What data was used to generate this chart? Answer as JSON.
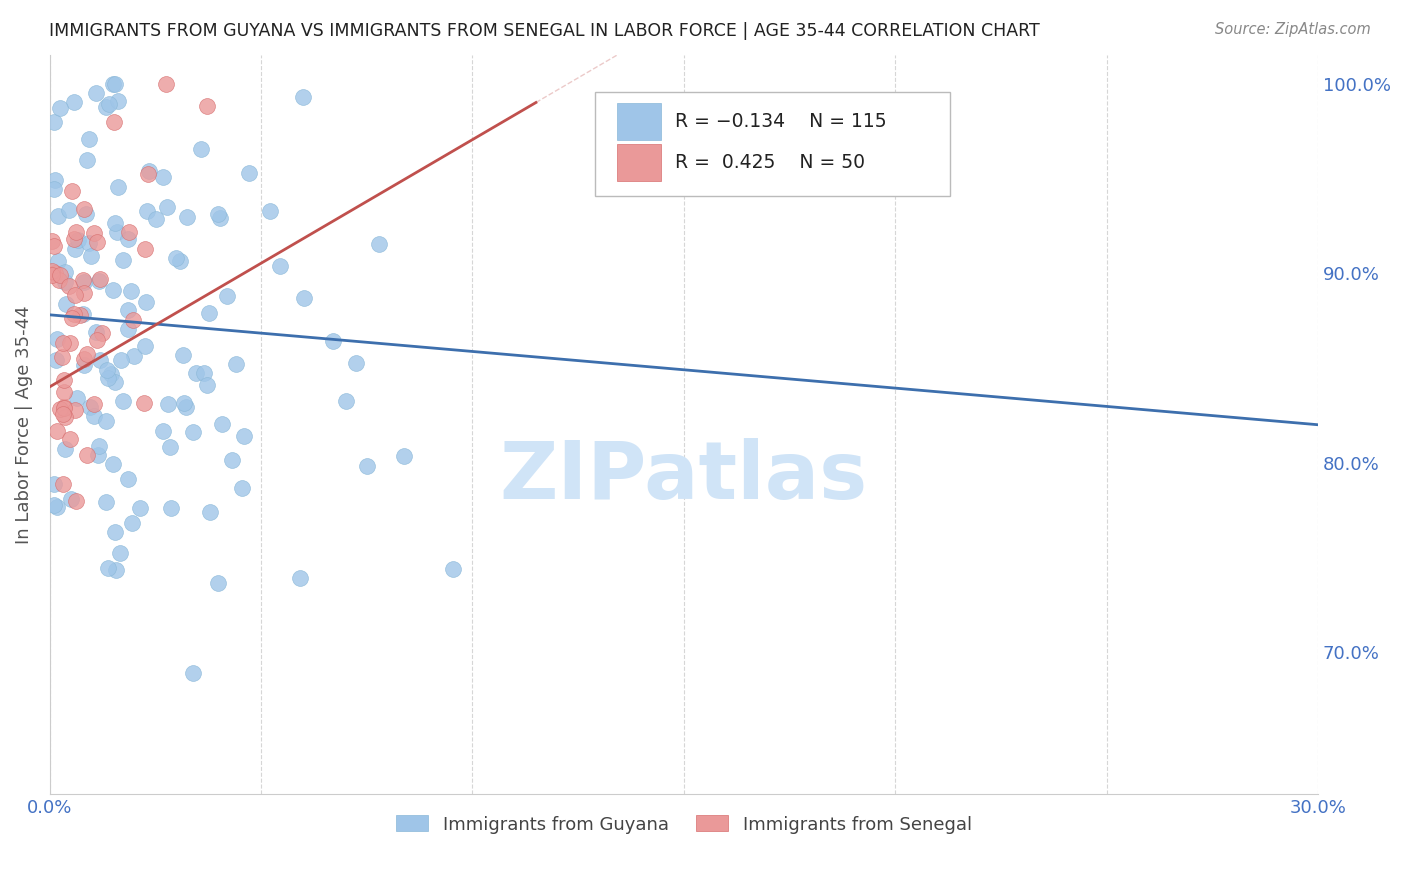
{
  "title": "IMMIGRANTS FROM GUYANA VS IMMIGRANTS FROM SENEGAL IN LABOR FORCE | AGE 35-44 CORRELATION CHART",
  "source": "Source: ZipAtlas.com",
  "ylabel": "In Labor Force | Age 35-44",
  "xlim": [
    0.0,
    0.3
  ],
  "ylim": [
    0.625,
    1.015
  ],
  "xticks": [
    0.0,
    0.05,
    0.1,
    0.15,
    0.2,
    0.25,
    0.3
  ],
  "xticklabels": [
    "0.0%",
    "",
    "",
    "",
    "",
    "",
    "30.0%"
  ],
  "yticks_right": [
    0.7,
    0.8,
    0.9,
    1.0
  ],
  "ytick_right_labels": [
    "70.0%",
    "80.0%",
    "90.0%",
    "100.0%"
  ],
  "guyana_color": "#9fc5e8",
  "senegal_color": "#ea9999",
  "guyana_R": -0.134,
  "guyana_N": 115,
  "senegal_R": 0.425,
  "senegal_N": 50,
  "trend_guyana_color": "#3d6fad",
  "trend_senegal_color": "#c0504d",
  "watermark_text": "ZIPatlas",
  "watermark_color": "#d0e4f7",
  "trend_guyana_x0": 0.0,
  "trend_guyana_x1": 0.3,
  "trend_guyana_y0": 0.878,
  "trend_guyana_y1": 0.82,
  "trend_senegal_x0": 0.0,
  "trend_senegal_x1": 0.115,
  "trend_senegal_y0": 0.84,
  "trend_senegal_y1": 0.99
}
